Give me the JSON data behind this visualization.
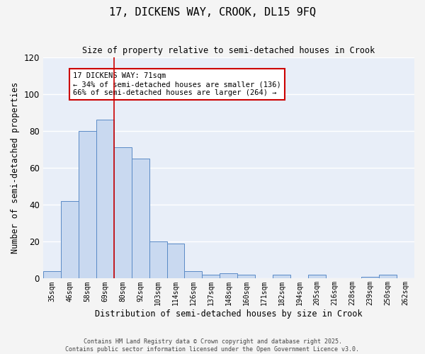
{
  "title": "17, DICKENS WAY, CROOK, DL15 9FQ",
  "subtitle": "Size of property relative to semi-detached houses in Crook",
  "xlabel": "Distribution of semi-detached houses by size in Crook",
  "ylabel": "Number of semi-detached properties",
  "bar_labels": [
    "35sqm",
    "46sqm",
    "58sqm",
    "69sqm",
    "80sqm",
    "92sqm",
    "103sqm",
    "114sqm",
    "126sqm",
    "137sqm",
    "148sqm",
    "160sqm",
    "171sqm",
    "182sqm",
    "194sqm",
    "205sqm",
    "216sqm",
    "228sqm",
    "239sqm",
    "250sqm",
    "262sqm"
  ],
  "bar_values": [
    4,
    42,
    80,
    86,
    71,
    65,
    20,
    19,
    4,
    2,
    3,
    2,
    0,
    2,
    0,
    2,
    0,
    0,
    1,
    2,
    0
  ],
  "bar_color": "#c9d9f0",
  "bar_edge_color": "#5a8ac6",
  "annotation_text": "17 DICKENS WAY: 71sqm\n← 34% of semi-detached houses are smaller (136)\n66% of semi-detached houses are larger (264) →",
  "annotation_box_color": "#ffffff",
  "annotation_box_edge": "#cc0000",
  "red_line_color": "#cc0000",
  "grid_color": "#ffffff",
  "bg_color": "#e8eef8",
  "fig_bg_color": "#f4f4f4",
  "footer_text": "Contains HM Land Registry data © Crown copyright and database right 2025.\nContains public sector information licensed under the Open Government Licence v3.0.",
  "ylim": [
    0,
    120
  ],
  "figsize": [
    6.0,
    5.0
  ],
  "dpi": 100
}
